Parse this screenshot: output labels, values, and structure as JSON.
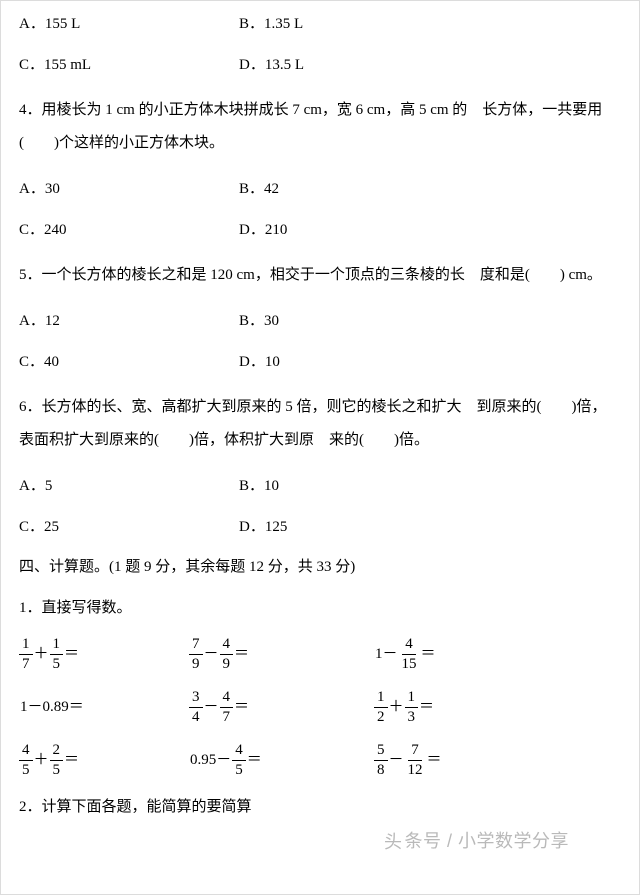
{
  "q3options": {
    "a": "A．155 L",
    "b": "B．1.35 L",
    "c": "C．155 mL",
    "d": "D．13.5 L"
  },
  "q4": {
    "text": "4．用棱长为 1 cm 的小正方体木块拼成长 7 cm，宽 6 cm，高 5 cm 的　长方体，一共要用(　　)个这样的小正方体木块。",
    "a": "A．30",
    "b": "B．42",
    "c": "C．240",
    "d": "D．210"
  },
  "q5": {
    "text": "5．一个长方体的棱长之和是 120 cm，相交于一个顶点的三条棱的长　度和是(　　) cm。",
    "a": "A．12",
    "b": "B．30",
    "c": "C．40",
    "d": "D．10"
  },
  "q6": {
    "text": "6．长方体的长、宽、高都扩大到原来的 5 倍，则它的棱长之和扩大　到原来的(　　)倍，表面积扩大到原来的(　　)倍，体积扩大到原　来的(　　)倍。",
    "a": "A．5",
    "b": "B．10",
    "c": "C．25",
    "d": "D．125"
  },
  "sec4": {
    "title": "四、计算题。(1 题 9 分，其余每题 12 分，共 33 分)",
    "subtitle1": "1．直接写得数。",
    "subtitle2": "2．计算下面各题，能简算的要简算",
    "r1": {
      "a": {
        "f1n": "1",
        "f1d": "7",
        "op": "＋",
        "f2n": "1",
        "f2d": "5",
        "eq": "＝"
      },
      "b": {
        "f1n": "7",
        "f1d": "9",
        "op": "－",
        "f2n": "4",
        "f2d": "9",
        "eq": "＝"
      },
      "c": {
        "pre": "1－",
        "f1n": "4",
        "f1d": "15",
        "eq": "＝"
      }
    },
    "r2": {
      "a": {
        "text": "1－0.89＝"
      },
      "b": {
        "f1n": "3",
        "f1d": "4",
        "op": "－",
        "f2n": "4",
        "f2d": "7",
        "eq": "＝"
      },
      "c": {
        "f1n": "1",
        "f1d": "2",
        "op": "＋",
        "f2n": "1",
        "f2d": "3",
        "eq": "＝"
      }
    },
    "r3": {
      "a": {
        "f1n": "4",
        "f1d": "5",
        "op": "＋",
        "f2n": "2",
        "f2d": "5",
        "eq": "＝"
      },
      "b": {
        "pre": "0.95－",
        "f1n": "4",
        "f1d": "5",
        "eq": "＝"
      },
      "c": {
        "f1n": "5",
        "f1d": "8",
        "op": "－",
        "f2n": "7",
        "f2d": "12",
        "eq": "＝"
      }
    }
  },
  "watermark": {
    "logo": "头",
    "text": "条号 / 小学数学分享"
  }
}
